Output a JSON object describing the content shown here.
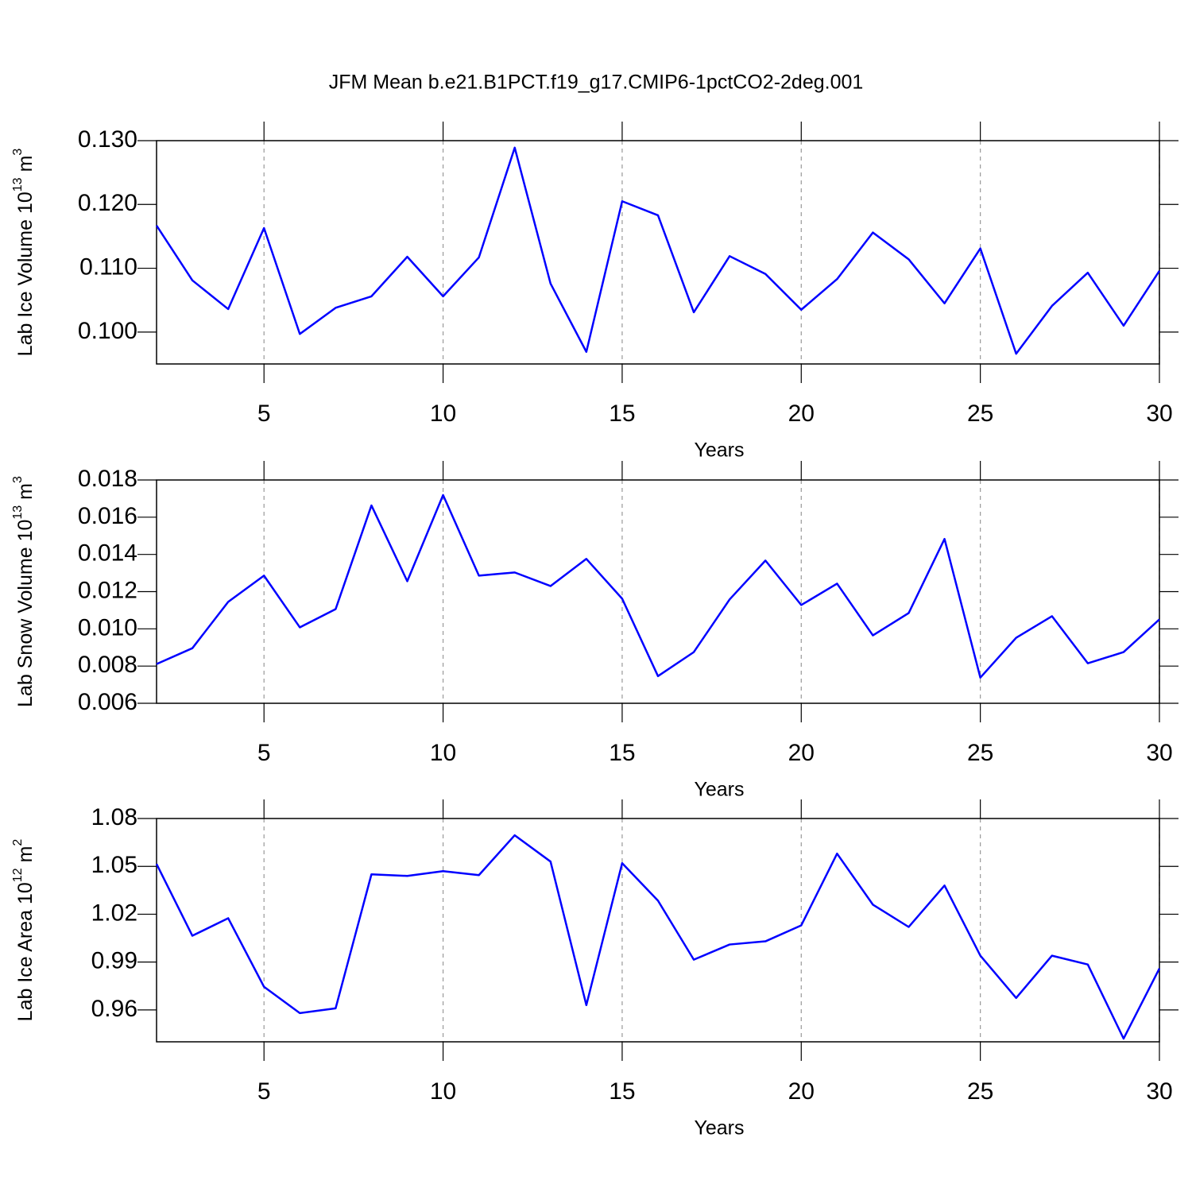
{
  "chart_data": [
    {
      "type": "line",
      "title": "JFM Mean b.e21.B1PCT.f19_g17.CMIP6-1pctCO2-2deg.001",
      "ylabel": {
        "text": "Lab Ice Volume 10",
        "exponent": "13",
        "unit": "m",
        "unit_exponent": "3"
      },
      "xlabel": "Years",
      "xgrid": true,
      "color": "#0000ff",
      "x": [
        2,
        3,
        4,
        5,
        6,
        7,
        8,
        9,
        10,
        11,
        12,
        13,
        14,
        15,
        16,
        17,
        18,
        19,
        20,
        21,
        22,
        23,
        24,
        25,
        26,
        27,
        28,
        29,
        30
      ],
      "values": [
        0.1167,
        0.1081,
        0.1036,
        0.1163,
        0.0997,
        0.1038,
        0.1056,
        0.1118,
        0.1056,
        0.1117,
        0.1289,
        0.1076,
        0.0969,
        0.1205,
        0.1183,
        0.1031,
        0.1119,
        0.1091,
        0.1035,
        0.1083,
        0.1156,
        0.1114,
        0.1045,
        0.1131,
        0.0966,
        0.1041,
        0.1093,
        0.101,
        0.1096
      ],
      "xlim": [
        2,
        30
      ],
      "xticks": [
        5,
        10,
        15,
        20,
        25,
        30
      ],
      "ylim": [
        0.095,
        0.13
      ],
      "yticks": [
        {
          "value": 0.1,
          "label": "0.100"
        },
        {
          "value": 0.11,
          "label": "0.110"
        },
        {
          "value": 0.12,
          "label": "0.120"
        },
        {
          "value": 0.13,
          "label": "0.130"
        }
      ]
    },
    {
      "type": "line",
      "ylabel": {
        "text": "Lab Snow Volume 10",
        "exponent": "13",
        "unit": "m",
        "unit_exponent": "3"
      },
      "xlabel": "Years",
      "xgrid": true,
      "color": "#0000ff",
      "x": [
        2,
        3,
        4,
        5,
        6,
        7,
        8,
        9,
        10,
        11,
        12,
        13,
        14,
        15,
        16,
        17,
        18,
        19,
        20,
        21,
        22,
        23,
        24,
        25,
        26,
        27,
        28,
        29,
        30
      ],
      "values": [
        0.00811,
        0.00896,
        0.01145,
        0.01286,
        0.01008,
        0.01106,
        0.01663,
        0.01256,
        0.01719,
        0.01286,
        0.01303,
        0.0123,
        0.01376,
        0.01162,
        0.00746,
        0.00875,
        0.01158,
        0.01367,
        0.01128,
        0.01243,
        0.00965,
        0.01085,
        0.01483,
        0.00738,
        0.00952,
        0.01068,
        0.00815,
        0.00875,
        0.01051
      ],
      "xlim": [
        2,
        30
      ],
      "xticks": [
        5,
        10,
        15,
        20,
        25,
        30
      ],
      "ylim": [
        0.006,
        0.018
      ],
      "yticks": [
        0.006,
        0.008,
        {
          "value": 0.01,
          "label": "0.010"
        },
        0.012,
        0.014,
        0.016,
        0.018
      ]
    },
    {
      "type": "line",
      "ylabel": {
        "text": "Lab Ice Area 10",
        "exponent": "12",
        "unit": "m",
        "unit_exponent": "2"
      },
      "xlabel": "Years",
      "xgrid": true,
      "color": "#0000ff",
      "x": [
        2,
        3,
        4,
        5,
        6,
        7,
        8,
        9,
        10,
        11,
        12,
        13,
        14,
        15,
        16,
        17,
        18,
        19,
        20,
        21,
        22,
        23,
        24,
        25,
        26,
        27,
        28,
        29,
        30
      ],
      "values": [
        1.0515,
        1.0065,
        1.0175,
        0.9745,
        0.958,
        0.961,
        1.045,
        1.044,
        1.047,
        1.0445,
        1.0695,
        1.053,
        0.963,
        1.052,
        1.0285,
        0.9915,
        1.001,
        1.003,
        1.013,
        1.058,
        1.026,
        1.012,
        1.038,
        0.994,
        0.9675,
        0.994,
        0.9885,
        0.942,
        0.986
      ],
      "xlim": [
        2,
        30
      ],
      "xticks": [
        5,
        10,
        15,
        20,
        25,
        30
      ],
      "ylim": [
        0.94,
        1.08
      ],
      "yticks": [
        0.96,
        0.99,
        1.02,
        1.05,
        1.08
      ]
    }
  ]
}
